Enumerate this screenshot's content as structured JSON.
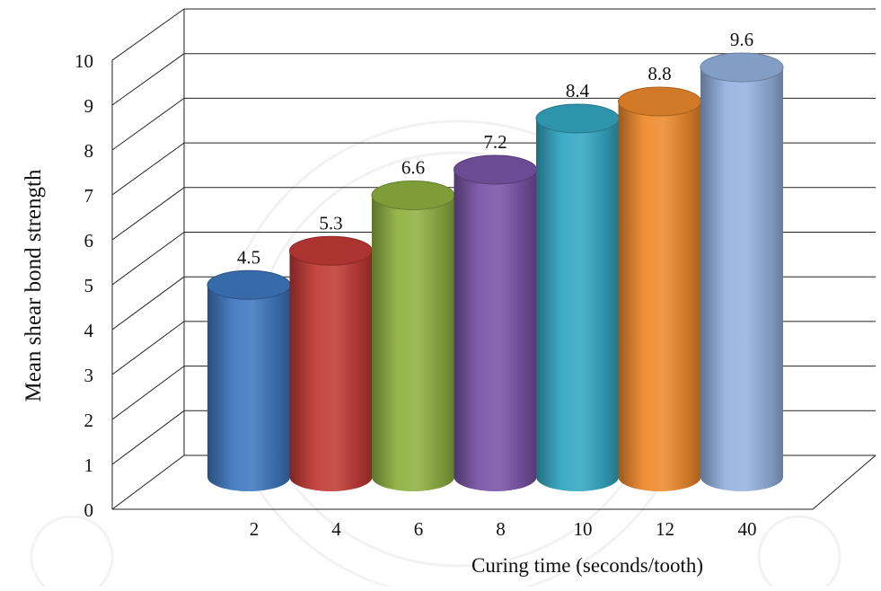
{
  "chart_data": {
    "type": "bar",
    "style": "3d-cylinder",
    "categories": [
      "2",
      "4",
      "6",
      "8",
      "10",
      "12",
      "40"
    ],
    "values": [
      4.5,
      5.3,
      6.6,
      7.2,
      8.4,
      8.8,
      9.6
    ],
    "data_labels": [
      "4.5",
      "5.3",
      "6.6",
      "7.2",
      "8.4",
      "8.8",
      "9.6"
    ],
    "bar_colors": [
      "#3f78c0",
      "#c23b37",
      "#8fb241",
      "#7a55a8",
      "#34a8c4",
      "#ee8a2c",
      "#95b3e0"
    ],
    "title": "",
    "xlabel": "Curing time (seconds/tooth)",
    "ylabel": "Mean shear bond strength",
    "ylim": [
      0,
      10
    ],
    "yticks": [
      "0",
      "1",
      "2",
      "3",
      "4",
      "5",
      "6",
      "7",
      "8",
      "9",
      "10"
    ],
    "grid": true,
    "legend": "none"
  }
}
